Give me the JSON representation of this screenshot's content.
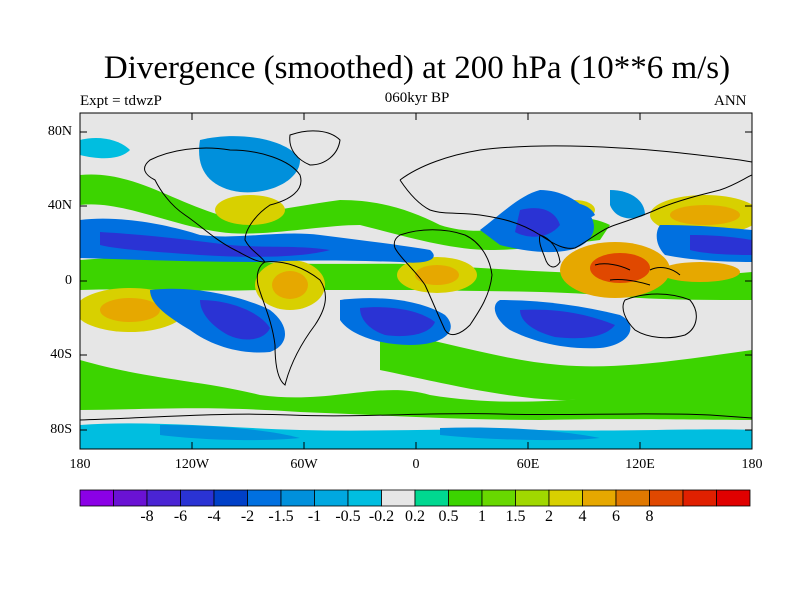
{
  "plot": {
    "title": "Divergence (smoothed) at 200 hPa (10**6 m/s)",
    "left_label": "Expt = tdwzP",
    "center_label": "060kyr BP",
    "right_label": "ANN"
  },
  "axes": {
    "y_ticks": [
      "80N",
      "40N",
      "0",
      "40S",
      "80S"
    ],
    "x_ticks": [
      "180",
      "120W",
      "60W",
      "0",
      "60E",
      "120E",
      "180"
    ],
    "lon_range": [
      -180,
      180
    ],
    "lat_range": [
      -90,
      90
    ]
  },
  "colorbar": {
    "labels": [
      "-8",
      "-6",
      "-4",
      "-2",
      "-1.5",
      "-1",
      "-0.5",
      "-0.2",
      "0.2",
      "0.5",
      "1",
      "1.5",
      "2",
      "4",
      "6",
      "8"
    ],
    "colors": [
      "#8b00e6",
      "#6a12d4",
      "#4a24d4",
      "#2a33d4",
      "#0040c8",
      "#0070e0",
      "#0090dc",
      "#00a8e0",
      "#00bee0",
      "#e6e6e6",
      "#00d890",
      "#3cd400",
      "#68d800",
      "#a0d800",
      "#d8d000",
      "#e6a800",
      "#e07800",
      "#e04800",
      "#e02000",
      "#e00000"
    ]
  },
  "colors": {
    "neutral": "#e6e6e6",
    "blue_strong": "#2a33d4",
    "blue_mid": "#0070e0",
    "blue_light": "#00bee0",
    "green": "#3cd400",
    "green_light": "#00d890",
    "yellow": "#d8d000",
    "orange": "#e6a800",
    "red": "#e04800"
  }
}
